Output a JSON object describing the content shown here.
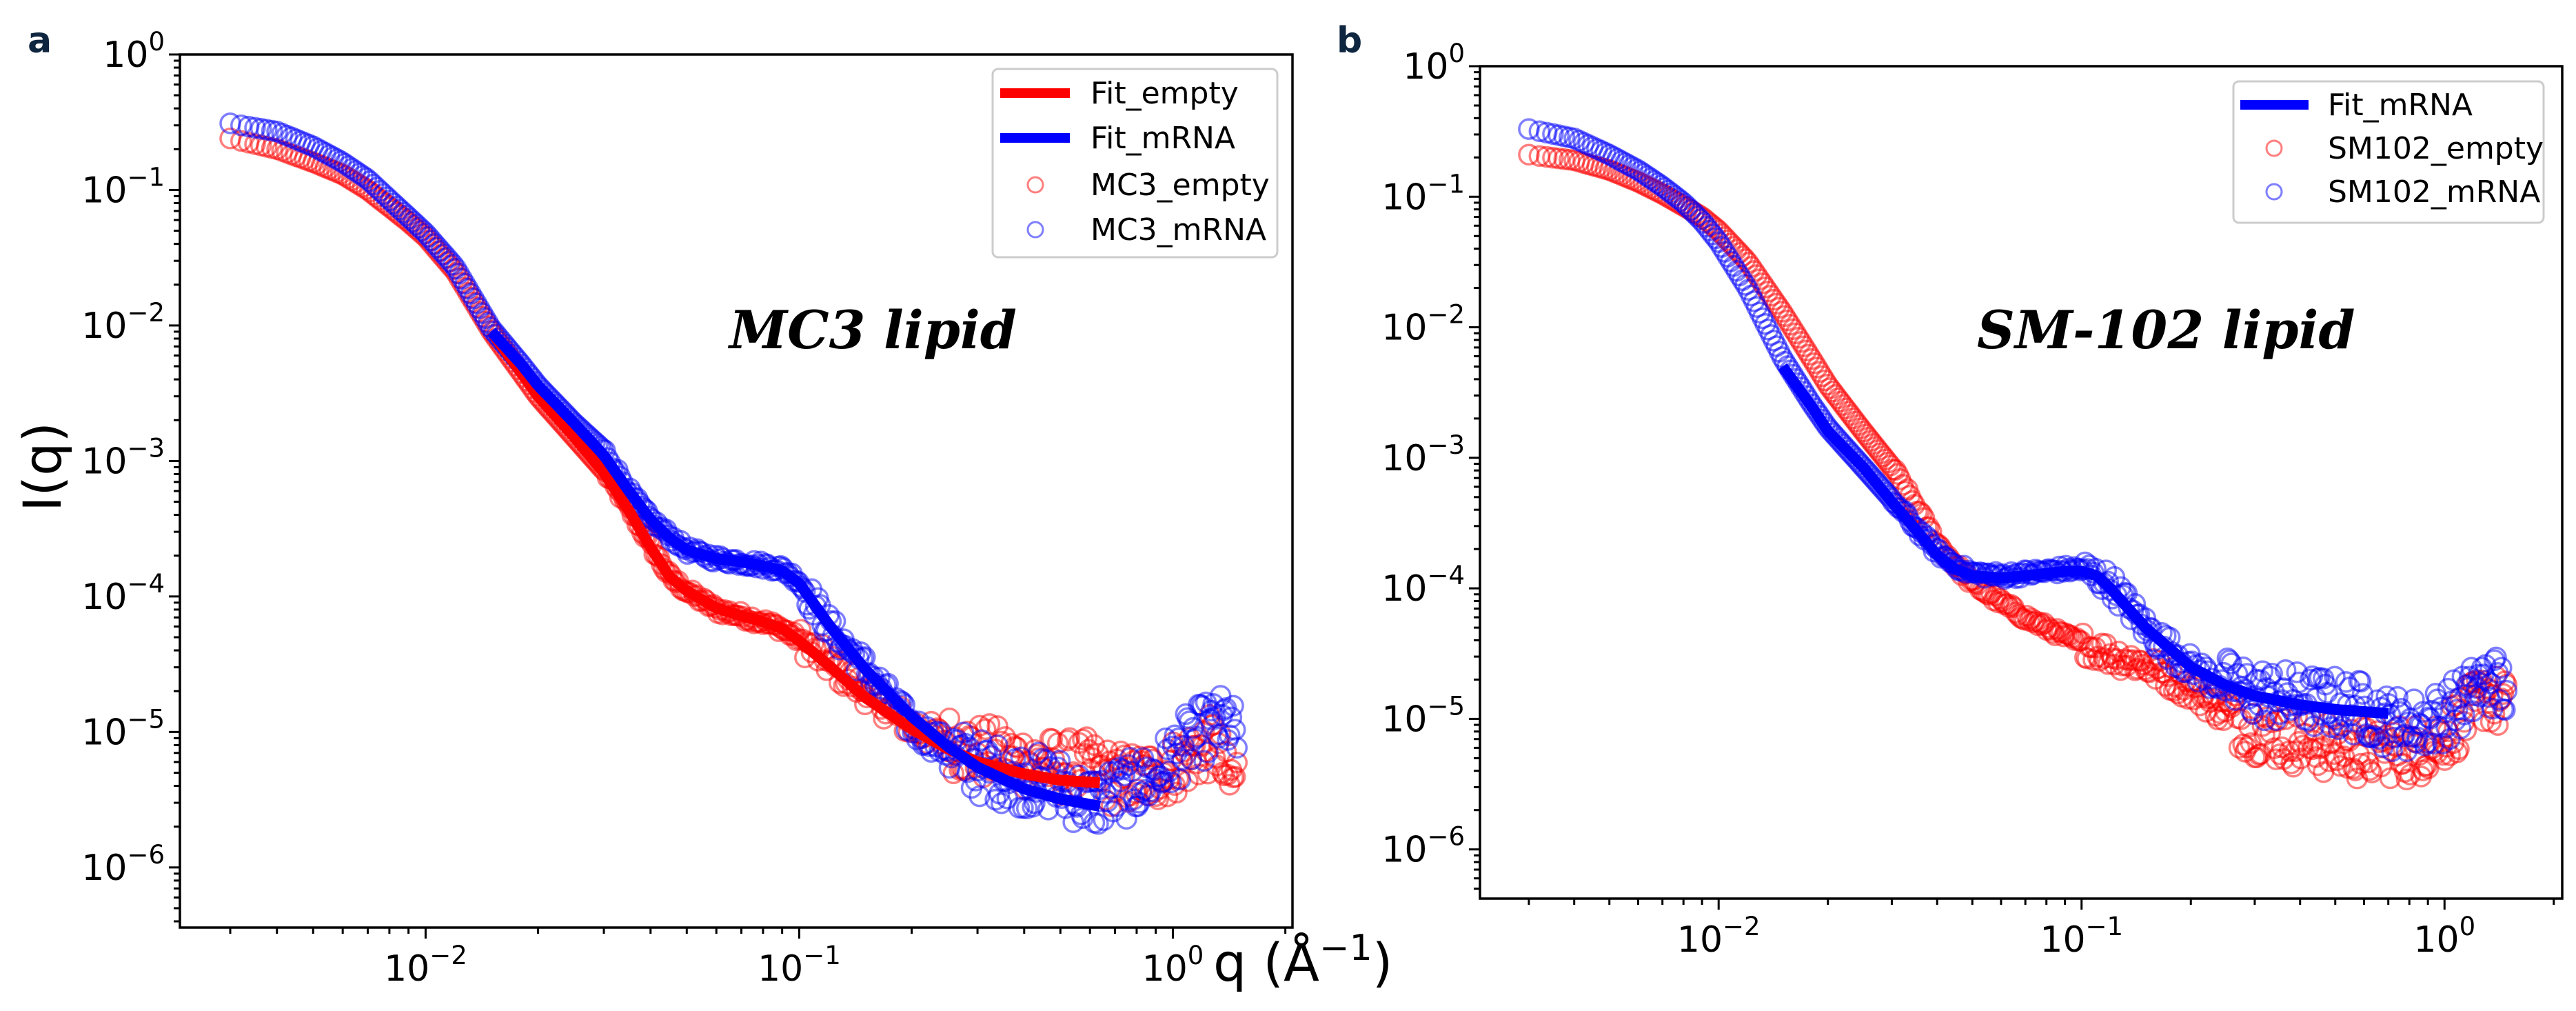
{
  "figure": {
    "xlabel": "q (Å",
    "xlabel_sup": "−1",
    "xlabel_close": ")",
    "ylabel": "I(q)"
  },
  "colors": {
    "empty": "#ff0000",
    "mrna": "#0000ff",
    "legend_border": "#cccccc",
    "panel_letter": "#0f2640"
  },
  "chart_data": [
    {
      "panel": "a",
      "type": "scatter",
      "title": "",
      "annotation": "MC3 lipid",
      "xlabel": "q (Å^-1)",
      "ylabel": "I(q)",
      "xscale": "log",
      "yscale": "log",
      "xlim": [
        0.0022,
        2.09
      ],
      "ylim": [
        3.6e-07,
        1.0
      ],
      "x_ticks": [
        {
          "base": "10",
          "exp": "−2",
          "value": 0.01
        },
        {
          "base": "10",
          "exp": "−1",
          "value": 0.1
        },
        {
          "base": "10",
          "exp": "0",
          "value": 1
        }
      ],
      "y_ticks": [
        {
          "base": "10",
          "exp": "0",
          "value": 1
        },
        {
          "base": "10",
          "exp": "−1",
          "value": 0.1
        },
        {
          "base": "10",
          "exp": "−2",
          "value": 0.01
        },
        {
          "base": "10",
          "exp": "−3",
          "value": 0.001
        },
        {
          "base": "10",
          "exp": "−4",
          "value": 0.0001
        },
        {
          "base": "10",
          "exp": "−5",
          "value": 1e-05
        },
        {
          "base": "10",
          "exp": "−6",
          "value": 1e-06
        }
      ],
      "legend_position": "top-right",
      "legend": [
        {
          "label": "Fit_empty",
          "kind": "line",
          "color": "#ff0000"
        },
        {
          "label": "Fit_mRNA",
          "kind": "line",
          "color": "#0000ff"
        },
        {
          "label": "MC3_empty",
          "kind": "marker",
          "color": "#ff0000"
        },
        {
          "label": "MC3_mRNA",
          "kind": "marker",
          "color": "#0000ff"
        }
      ],
      "series": [
        {
          "name": "MC3_empty",
          "kind": "marker",
          "color": "#ff0000",
          "x": [
            0.003,
            0.004,
            0.005,
            0.006,
            0.007,
            0.008,
            0.009,
            0.01,
            0.012,
            0.015,
            0.018,
            0.02,
            0.025,
            0.03,
            0.035,
            0.04,
            0.045,
            0.05,
            0.06,
            0.07,
            0.08,
            0.09,
            0.1,
            0.12,
            0.15,
            0.2,
            0.25,
            0.3,
            0.4,
            0.5,
            0.6,
            0.7,
            0.8,
            0.9,
            1.0,
            1.1,
            1.2,
            1.3,
            1.4,
            1.5
          ],
          "y": [
            0.24,
            0.2,
            0.16,
            0.13,
            0.1,
            0.075,
            0.058,
            0.045,
            0.025,
            0.009,
            0.0045,
            0.003,
            0.0015,
            0.00085,
            0.00045,
            0.00024,
            0.00014,
            0.00011,
            8e-05,
            7.2e-05,
            6.5e-05,
            5.8e-05,
            4.8e-05,
            3.2e-05,
            2e-05,
            1.1e-05,
            8.5e-06,
            7.2e-06,
            6.2e-06,
            5.5e-06,
            5.5e-06,
            4.5e-06,
            4.5e-06,
            4.8e-06,
            5.5e-06,
            6.5e-06,
            7.5e-06,
            8.5e-06,
            4e-06,
            5e-06
          ]
        },
        {
          "name": "MC3_mRNA",
          "kind": "marker",
          "color": "#0000ff",
          "x": [
            0.003,
            0.004,
            0.005,
            0.006,
            0.007,
            0.008,
            0.009,
            0.01,
            0.012,
            0.015,
            0.018,
            0.02,
            0.025,
            0.03,
            0.035,
            0.04,
            0.045,
            0.05,
            0.06,
            0.07,
            0.08,
            0.09,
            0.1,
            0.12,
            0.15,
            0.2,
            0.25,
            0.3,
            0.4,
            0.5,
            0.6,
            0.7,
            0.8,
            0.9,
            1.0,
            1.1,
            1.2,
            1.3,
            1.4,
            1.5
          ],
          "y": [
            0.31,
            0.27,
            0.21,
            0.16,
            0.12,
            0.085,
            0.063,
            0.048,
            0.027,
            0.0095,
            0.0052,
            0.0036,
            0.0019,
            0.0012,
            0.0006,
            0.00037,
            0.00028,
            0.00022,
            0.00019,
            0.00018,
            0.00017,
            0.00016,
            0.00013,
            6e-05,
            3e-05,
            1.1e-05,
            7.5e-06,
            5.5e-06,
            4.5e-06,
            4e-06,
            3e-06,
            3.5e-06,
            4e-06,
            4.8e-06,
            6.5e-06,
            8.5e-06,
            1e-05,
            1.1e-05,
            1.2e-05,
            8e-06
          ]
        },
        {
          "name": "Fit_empty",
          "kind": "line",
          "color": "#ff0000",
          "x": [
            0.015,
            0.018,
            0.02,
            0.025,
            0.03,
            0.035,
            0.04,
            0.045,
            0.05,
            0.06,
            0.07,
            0.08,
            0.09,
            0.1,
            0.12,
            0.15,
            0.2,
            0.25,
            0.3,
            0.4,
            0.5,
            0.65
          ],
          "y": [
            0.009,
            0.0045,
            0.003,
            0.0015,
            0.00082,
            0.00043,
            0.00023,
            0.00014,
            0.00011,
            8.2e-05,
            7.2e-05,
            6.5e-05,
            5.8e-05,
            4.7e-05,
            3.1e-05,
            1.8e-05,
            1.05e-05,
            7.5e-06,
            6e-06,
            4.9e-06,
            4.4e-06,
            4.2e-06
          ]
        },
        {
          "name": "Fit_mRNA",
          "kind": "line",
          "color": "#0000ff",
          "x": [
            0.015,
            0.018,
            0.02,
            0.025,
            0.03,
            0.035,
            0.04,
            0.045,
            0.05,
            0.06,
            0.07,
            0.08,
            0.09,
            0.1,
            0.12,
            0.15,
            0.2,
            0.25,
            0.3,
            0.4,
            0.5,
            0.65
          ],
          "y": [
            0.009,
            0.0052,
            0.0036,
            0.0019,
            0.0011,
            0.0006,
            0.00037,
            0.00027,
            0.00022,
            0.00019,
            0.00018,
            0.000168,
            0.000155,
            0.000125,
            6.2e-05,
            2.9e-05,
            1.3e-05,
            7.8e-06,
            5.5e-06,
            3.8e-06,
            3.2e-06,
            2.8e-06
          ]
        }
      ]
    },
    {
      "panel": "b",
      "type": "scatter",
      "title": "",
      "annotation": "SM-102 lipid",
      "xlabel": "q (Å^-1)",
      "ylabel": "I(q)",
      "xscale": "log",
      "yscale": "log",
      "xlim": [
        0.0022,
        2.11
      ],
      "ylim": [
        4.2e-07,
        1.0
      ],
      "x_ticks": [
        {
          "base": "10",
          "exp": "−2",
          "value": 0.01
        },
        {
          "base": "10",
          "exp": "−1",
          "value": 0.1
        },
        {
          "base": "10",
          "exp": "0",
          "value": 1
        }
      ],
      "y_ticks": [
        {
          "base": "10",
          "exp": "0",
          "value": 1
        },
        {
          "base": "10",
          "exp": "−1",
          "value": 0.1
        },
        {
          "base": "10",
          "exp": "−2",
          "value": 0.01
        },
        {
          "base": "10",
          "exp": "−3",
          "value": 0.001
        },
        {
          "base": "10",
          "exp": "−4",
          "value": 0.0001
        },
        {
          "base": "10",
          "exp": "−5",
          "value": 1e-05
        },
        {
          "base": "10",
          "exp": "−6",
          "value": 1e-06
        }
      ],
      "legend_position": "top-right",
      "legend": [
        {
          "label": "Fit_mRNA",
          "kind": "line",
          "color": "#0000ff"
        },
        {
          "label": "SM102_empty",
          "kind": "marker",
          "color": "#ff0000"
        },
        {
          "label": "SM102_mRNA",
          "kind": "marker",
          "color": "#0000ff"
        }
      ],
      "series": [
        {
          "name": "SM102_empty",
          "kind": "marker",
          "color": "#ff0000",
          "x": [
            0.003,
            0.004,
            0.005,
            0.006,
            0.007,
            0.008,
            0.009,
            0.01,
            0.012,
            0.015,
            0.018,
            0.02,
            0.025,
            0.03,
            0.035,
            0.04,
            0.045,
            0.05,
            0.06,
            0.07,
            0.08,
            0.09,
            0.1,
            0.12,
            0.15,
            0.2,
            0.25,
            0.3,
            0.4,
            0.5,
            0.6,
            0.7,
            0.8,
            0.9,
            1.0,
            1.1,
            1.2,
            1.3,
            1.4,
            1.5
          ],
          "y": [
            0.21,
            0.19,
            0.16,
            0.13,
            0.105,
            0.085,
            0.07,
            0.055,
            0.032,
            0.013,
            0.0058,
            0.0036,
            0.0016,
            0.00085,
            0.00042,
            0.00022,
            0.00015,
            0.00011,
            7.8e-05,
            6e-05,
            5e-05,
            4.3e-05,
            3.8e-05,
            3.1e-05,
            2.6e-05,
            1.7e-05,
            1.1e-05,
            8.5e-06,
            6.8e-06,
            6e-06,
            5.5e-06,
            5.8e-06,
            5.5e-06,
            6.2e-06,
            7.5e-06,
            9.5e-06,
            1.2e-05,
            1.6e-05,
            1.3e-05,
            1.2e-05
          ]
        },
        {
          "name": "SM102_mRNA",
          "kind": "marker",
          "color": "#0000ff",
          "x": [
            0.003,
            0.004,
            0.005,
            0.006,
            0.007,
            0.008,
            0.009,
            0.01,
            0.012,
            0.015,
            0.018,
            0.02,
            0.025,
            0.03,
            0.035,
            0.04,
            0.045,
            0.05,
            0.06,
            0.07,
            0.08,
            0.09,
            0.1,
            0.12,
            0.15,
            0.2,
            0.25,
            0.3,
            0.4,
            0.5,
            0.6,
            0.7,
            0.8,
            0.9,
            1.0,
            1.1,
            1.2,
            1.3,
            1.4,
            1.5
          ],
          "y": [
            0.33,
            0.28,
            0.21,
            0.16,
            0.12,
            0.09,
            0.065,
            0.045,
            0.02,
            0.0058,
            0.0026,
            0.0017,
            0.00085,
            0.00048,
            0.00029,
            0.00019,
            0.00015,
            0.00013,
            0.000125,
            0.00013,
            0.000135,
            0.00014,
            0.00014,
            0.00011,
            5e-05,
            2.5e-05,
            1.8e-05,
            1.6e-05,
            1.4e-05,
            1.3e-05,
            1.2e-05,
            9.5e-06,
            9e-06,
            9.5e-06,
            1.1e-05,
            1.3e-05,
            1.6e-05,
            2e-05,
            1.9e-05,
            1.5e-05
          ]
        },
        {
          "name": "Fit_mRNA",
          "kind": "line",
          "color": "#0000ff",
          "x": [
            0.015,
            0.018,
            0.02,
            0.025,
            0.03,
            0.035,
            0.04,
            0.045,
            0.05,
            0.06,
            0.07,
            0.08,
            0.09,
            0.1,
            0.11,
            0.12,
            0.15,
            0.2,
            0.25,
            0.3,
            0.4,
            0.5,
            0.7
          ],
          "y": [
            0.005,
            0.0025,
            0.0016,
            0.00085,
            0.00046,
            0.00028,
            0.00018,
            0.00014,
            0.000125,
            0.00012,
            0.000125,
            0.00013,
            0.000135,
            0.000135,
            0.000125,
            0.0001,
            5e-05,
            2.5e-05,
            1.8e-05,
            1.5e-05,
            1.28e-05,
            1.18e-05,
            1.1e-05
          ]
        }
      ]
    }
  ]
}
